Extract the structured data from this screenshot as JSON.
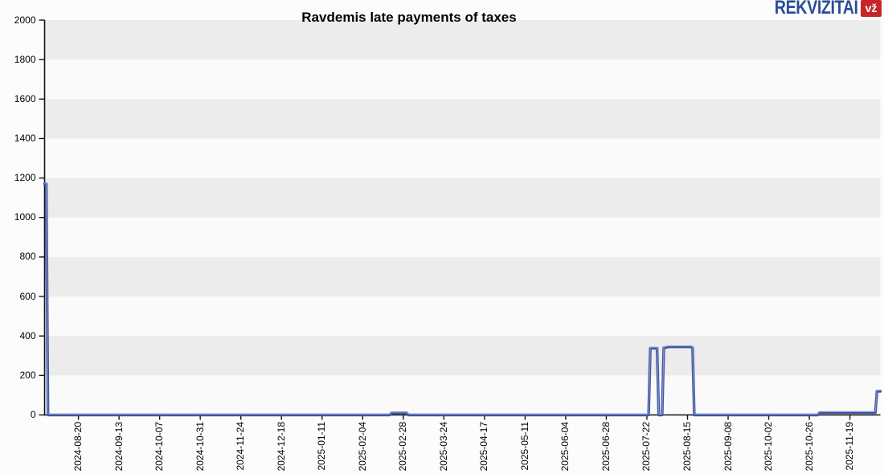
{
  "header": {
    "logo": {
      "text": "REKVIZITAI",
      "badge": "vž",
      "text_color": "#2b4b9b",
      "badge_color": "#c5262c"
    }
  },
  "chart_data": {
    "type": "line",
    "title": "Ravdemis late payments of taxes",
    "xlabel": "",
    "ylabel": "",
    "ylim": [
      0,
      2000
    ],
    "y_ticks": [
      0,
      200,
      400,
      600,
      800,
      1000,
      1200,
      1400,
      1600,
      1800,
      2000
    ],
    "x_tick_labels": [
      "2024-08-20",
      "2024-09-13",
      "2024-10-07",
      "2024-10-31",
      "2024-11-24",
      "2024-12-18",
      "2025-01-11",
      "2025-02-04",
      "2025-02-28",
      "2025-03-24",
      "2025-04-17",
      "2025-05-11",
      "2025-06-04",
      "2025-06-28",
      "2025-07-22",
      "2025-08-15",
      "2025-09-08",
      "2025-10-02",
      "2025-10-26",
      "2025-11-19"
    ],
    "x_domain": [
      "2024-07-31",
      "2025-12-07"
    ],
    "grid": "alternating horizontal bands every 200 units",
    "band_colors": [
      "#fafafa",
      "#ececec"
    ],
    "axis_color": "#111111",
    "legend": "none",
    "series": [
      {
        "name": "Late payments of taxes",
        "color": "#3f52a3",
        "highlight_color": "#8ea0d6",
        "points": [
          [
            "2024-07-31",
            1170
          ],
          [
            "2024-08-01",
            1170
          ],
          [
            "2024-08-02",
            0
          ],
          [
            "2025-02-20",
            0
          ],
          [
            "2025-02-21",
            10
          ],
          [
            "2025-03-02",
            10
          ],
          [
            "2025-03-03",
            0
          ],
          [
            "2025-07-23",
            0
          ],
          [
            "2025-07-24",
            338
          ],
          [
            "2025-07-28",
            338
          ],
          [
            "2025-07-29",
            0
          ],
          [
            "2025-07-31",
            0
          ],
          [
            "2025-08-01",
            340
          ],
          [
            "2025-08-04",
            345
          ],
          [
            "2025-08-17",
            345
          ],
          [
            "2025-08-18",
            340
          ],
          [
            "2025-08-19",
            0
          ],
          [
            "2025-10-31",
            0
          ],
          [
            "2025-11-01",
            12
          ],
          [
            "2025-12-04",
            12
          ],
          [
            "2025-12-05",
            120
          ],
          [
            "2025-12-07",
            120
          ]
        ]
      }
    ]
  }
}
